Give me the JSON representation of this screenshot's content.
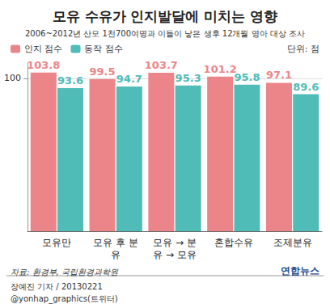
{
  "chart_data": {
    "type": "bar",
    "title": "모유 수유가 인지발달에 미치는 영향",
    "subtitle": "2006~2012년 산모 1천700여명과 이들이 낳은 생후 12개월 영아 대상 조사",
    "unit": "단위: 점",
    "categories": [
      "모유만",
      "모유 후 분유",
      "모유 → 분유 → 모유",
      "혼합수유",
      "조제분유"
    ],
    "series": [
      {
        "name": "인지 점수",
        "color": "#ec8589",
        "values": [
          103.8,
          99.5,
          103.7,
          101.2,
          97.1
        ]
      },
      {
        "name": "동작 점수",
        "color": "#4fbcb8",
        "values": [
          93.6,
          94.7,
          95.3,
          95.8,
          89.6
        ]
      }
    ],
    "ylim": [
      0,
      110
    ],
    "yticks": [
      100
    ],
    "grid": true,
    "legend": "upper left",
    "data_labels": true,
    "source": "자료: 환경부, 국립환경과학원",
    "logo": "연합뉴스",
    "credits": [
      "장예진 기자 / 20130221",
      "@yonhap_graphics(트위터)"
    ]
  }
}
